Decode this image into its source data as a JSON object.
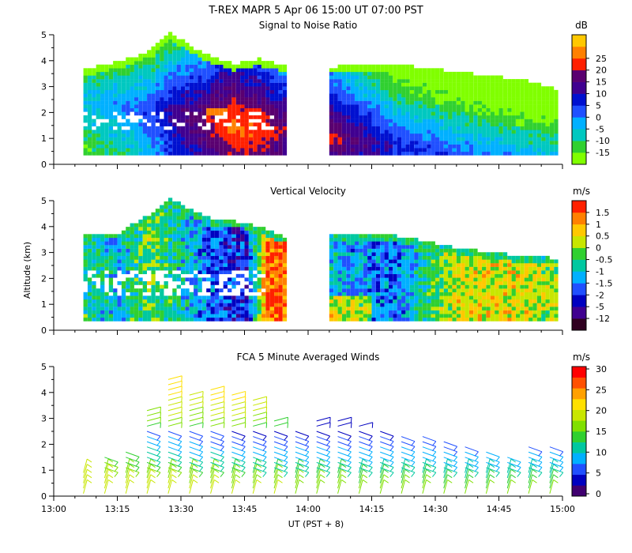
{
  "title": "T-REX  MAPR  5 Apr 06  15:00 UT  07:00  PST",
  "xlabel": "UT  (PST + 8)",
  "ylabel": "Altitude (km)",
  "colors": {
    "snr": [
      "#80ff00",
      "#30d030",
      "#00c8c0",
      "#00b0ff",
      "#2050ff",
      "#0010d0",
      "#400090",
      "#5a0070",
      "#ff2000",
      "#ff8000",
      "#ffc800"
    ],
    "velocity": [
      "#300020",
      "#400090",
      "#0000c0",
      "#2050ff",
      "#00b0ff",
      "#00c8a0",
      "#30d030",
      "#c8e600",
      "#ffc800",
      "#ff8000",
      "#ff2000"
    ],
    "winds": [
      "#400070",
      "#0000c0",
      "#2050ff",
      "#00b0ff",
      "#00c8a0",
      "#30d030",
      "#80e000",
      "#c8e600",
      "#ffe000",
      "#ffa000",
      "#ff5000",
      "#ff0000"
    ]
  },
  "chart_data": [
    {
      "type": "heatmap",
      "title": "Signal to Noise Ratio",
      "unit": "dB",
      "xlim": [
        "13:00",
        "15:00"
      ],
      "ylim": [
        0,
        5
      ],
      "yticks": [
        "0",
        "1",
        "2",
        "3",
        "4",
        "5"
      ],
      "colorbar_labels": [
        "-15",
        "-10",
        "-5",
        "0",
        "5",
        "10",
        "15",
        "20",
        "25"
      ],
      "data_gap": [
        "13:55",
        "14:05"
      ],
      "peak": {
        "time": "13:38",
        "altitude_km": 2.0,
        "value_db": 15
      },
      "profile": [
        {
          "time": "13:07",
          "top_km": 3.6,
          "value_db": -10
        },
        {
          "time": "13:15",
          "top_km": 3.9,
          "value_db": -8
        },
        {
          "time": "13:22",
          "top_km": 4.3,
          "value_db": -5
        },
        {
          "time": "13:27",
          "top_km": 5.0,
          "value_db": 0
        },
        {
          "time": "13:35",
          "top_km": 4.2,
          "value_db": 5
        },
        {
          "time": "13:42",
          "top_km": 3.8,
          "value_db": 10
        },
        {
          "time": "13:48",
          "top_km": 4.0,
          "value_db": 8
        },
        {
          "time": "13:55",
          "top_km": 3.7,
          "value_db": 3
        },
        {
          "time": "14:05",
          "top_km": 3.7,
          "value_db": 5
        },
        {
          "time": "14:20",
          "top_km": 3.8,
          "value_db": -5
        },
        {
          "time": "14:35",
          "top_km": 3.5,
          "value_db": -8
        },
        {
          "time": "14:50",
          "top_km": 3.2,
          "value_db": -10
        },
        {
          "time": "14:59",
          "top_km": 2.8,
          "value_db": -10
        }
      ]
    },
    {
      "type": "heatmap",
      "title": "Vertical Velocity",
      "unit": "m/s",
      "xlim": [
        "13:00",
        "15:00"
      ],
      "ylim": [
        0,
        5
      ],
      "yticks": [
        "0",
        "1",
        "2",
        "3",
        "4",
        "5"
      ],
      "colorbar_labels": [
        "-12",
        "-5",
        "-2",
        "-1.5",
        "-1",
        "-0.5",
        "0",
        "0.5",
        "1",
        "1.5"
      ],
      "data_gap": [
        "13:55",
        "14:05"
      ],
      "profile": [
        {
          "time": "13:07",
          "top_km": 3.7,
          "value_ms": -0.5
        },
        {
          "time": "13:15",
          "top_km": 3.7,
          "value_ms": -1
        },
        {
          "time": "13:22",
          "top_km": 4.4,
          "value_ms": 0
        },
        {
          "time": "13:27",
          "top_km": 5.0,
          "value_ms": -0.5
        },
        {
          "time": "13:37",
          "top_km": 4.2,
          "value_ms": -1.5
        },
        {
          "time": "13:45",
          "top_km": 4.1,
          "value_ms": -2
        },
        {
          "time": "13:50",
          "top_km": 3.8,
          "value_ms": 1.5
        },
        {
          "time": "13:55",
          "top_km": 3.5,
          "value_ms": 1.5
        },
        {
          "time": "14:05",
          "top_km": 3.7,
          "value_ms": -1
        },
        {
          "time": "14:20",
          "top_km": 3.6,
          "value_ms": -1.5
        },
        {
          "time": "14:35",
          "top_km": 3.1,
          "value_ms": 0.5
        },
        {
          "time": "14:50",
          "top_km": 2.8,
          "value_ms": 0.5
        },
        {
          "time": "14:59",
          "top_km": 2.7,
          "value_ms": 0
        }
      ]
    },
    {
      "type": "wind-barbs",
      "title": "FCA 5 Minute Averaged Winds",
      "unit": "m/s",
      "xlim": [
        "13:00",
        "15:00"
      ],
      "ylim": [
        0,
        5
      ],
      "yticks": [
        "0",
        "1",
        "2",
        "3",
        "4",
        "5"
      ],
      "xticks": [
        "13:00",
        "13:15",
        "13:30",
        "13:45",
        "14:00",
        "14:15",
        "14:30",
        "14:45",
        "15:00"
      ],
      "colorbar_labels": [
        "0",
        "5",
        "10",
        "15",
        "20",
        "25",
        "30"
      ],
      "levels_km": [
        0.0,
        0.2,
        0.4,
        0.6,
        0.8,
        1.0,
        1.2,
        1.4,
        1.6,
        1.8,
        2.0,
        2.2,
        2.4,
        2.6,
        2.8,
        3.0,
        3.2,
        3.4,
        3.6,
        3.8,
        4.0,
        4.2,
        4.4
      ],
      "low_level_speed_ms": 20,
      "columns": [
        {
          "time": "13:07",
          "speed_ms": [
            20,
            20,
            19,
            18,
            18
          ]
        },
        {
          "time": "13:12",
          "speed_ms": [
            19,
            19,
            18,
            18,
            17,
            16,
            15,
            14
          ]
        },
        {
          "time": "13:17",
          "speed_ms": [
            19,
            18,
            18,
            17,
            16,
            15,
            14,
            13,
            13
          ]
        },
        {
          "time": "13:22",
          "speed_ms": [
            19,
            18,
            18,
            17,
            16,
            15,
            14,
            12,
            11,
            10,
            9,
            7,
            6,
            14,
            15,
            15,
            16
          ]
        },
        {
          "time": "13:27",
          "speed_ms": [
            19,
            19,
            18,
            17,
            16,
            15,
            14,
            12,
            10,
            9,
            8,
            7,
            6,
            16,
            17,
            18,
            19,
            19,
            20,
            21,
            21,
            22,
            23
          ]
        },
        {
          "time": "13:32",
          "speed_ms": [
            19,
            18,
            17,
            16,
            15,
            14,
            12,
            10,
            9,
            8,
            7,
            6,
            5,
            14,
            15,
            16,
            17,
            18,
            19,
            20
          ]
        },
        {
          "time": "13:37",
          "speed_ms": [
            19,
            18,
            17,
            16,
            15,
            14,
            12,
            11,
            10,
            8,
            6,
            5,
            5,
            16,
            17,
            18,
            19,
            20,
            21,
            21,
            22
          ]
        },
        {
          "time": "13:42",
          "speed_ms": [
            18,
            17,
            16,
            15,
            14,
            13,
            12,
            10,
            9,
            8,
            6,
            5,
            4,
            15,
            16,
            18,
            19,
            20,
            21,
            22
          ]
        },
        {
          "time": "13:47",
          "speed_ms": [
            18,
            17,
            16,
            15,
            14,
            12,
            11,
            10,
            9,
            8,
            6,
            5,
            4,
            14,
            16,
            17,
            18,
            19,
            20
          ]
        },
        {
          "time": "13:52",
          "speed_ms": [
            18,
            17,
            16,
            15,
            14,
            12,
            10,
            9,
            8,
            7,
            6,
            5,
            4,
            13,
            14
          ]
        },
        {
          "time": "13:57",
          "speed_ms": [
            17,
            16,
            15,
            14,
            13,
            12,
            10,
            9,
            8,
            7,
            6,
            5,
            4
          ]
        },
        {
          "time": "14:02",
          "speed_ms": [
            17,
            16,
            15,
            14,
            13,
            12,
            10,
            9,
            8,
            7,
            6,
            5,
            4,
            3,
            3
          ]
        },
        {
          "time": "14:07",
          "speed_ms": [
            17,
            16,
            15,
            14,
            13,
            12,
            10,
            9,
            8,
            7,
            6,
            5,
            4,
            3,
            3
          ]
        },
        {
          "time": "14:12",
          "speed_ms": [
            16,
            15,
            14,
            13,
            12,
            11,
            10,
            9,
            8,
            7,
            6,
            5,
            4,
            3
          ]
        },
        {
          "time": "14:17",
          "speed_ms": [
            16,
            15,
            14,
            13,
            12,
            11,
            10,
            9,
            8,
            7,
            6,
            5,
            4
          ]
        },
        {
          "time": "14:22",
          "speed_ms": [
            16,
            15,
            14,
            13,
            12,
            11,
            10,
            9,
            8,
            7,
            6,
            5
          ]
        },
        {
          "time": "14:27",
          "speed_ms": [
            16,
            15,
            14,
            13,
            12,
            11,
            10,
            9,
            8,
            7,
            6,
            5
          ]
        },
        {
          "time": "14:32",
          "speed_ms": [
            15,
            14,
            13,
            12,
            11,
            10,
            9,
            8,
            7,
            6,
            5
          ]
        },
        {
          "time": "14:37",
          "speed_ms": [
            15,
            14,
            13,
            12,
            11,
            10,
            9,
            8,
            7,
            6
          ]
        },
        {
          "time": "14:42",
          "speed_ms": [
            15,
            14,
            13,
            12,
            11,
            10,
            9,
            8,
            7
          ]
        },
        {
          "time": "14:47",
          "speed_ms": [
            15,
            14,
            13,
            12,
            11,
            10,
            9,
            8
          ]
        },
        {
          "time": "14:52",
          "speed_ms": [
            15,
            14,
            13,
            12,
            11,
            10,
            9,
            8,
            7,
            6
          ]
        },
        {
          "time": "14:57",
          "speed_ms": [
            15,
            14,
            13,
            12,
            11,
            10,
            9,
            8,
            7,
            6
          ]
        }
      ]
    }
  ]
}
